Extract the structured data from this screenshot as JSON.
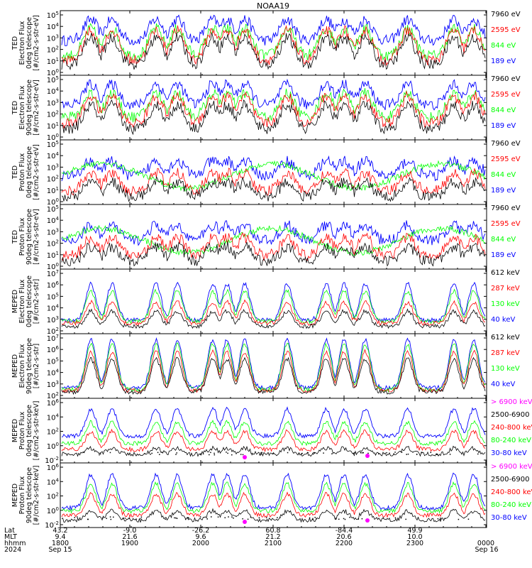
{
  "title": "NOAA19",
  "colors": {
    "black": "#000000",
    "red": "#ff0000",
    "green": "#00ff00",
    "blue": "#0000ff",
    "magenta": "#ff00ff"
  },
  "chart_data": {
    "type": "line",
    "title": "NOAA19",
    "x": {
      "start": "1800",
      "end": "0000",
      "tick_labels": [
        "1800",
        "1900",
        "2000",
        "2100",
        "2200",
        "2300",
        "0000"
      ]
    },
    "panels": [
      {
        "ylabel": [
          "TED",
          "Electron Flux",
          "0deg telescope",
          "[#/cm2-s-str-eV]"
        ],
        "yticks": [
          "10^0",
          "10^1",
          "10^2",
          "10^3",
          "10^4",
          "10^5"
        ],
        "legend": [
          "7960 eV",
          "2595 eV",
          "844 eV",
          "189 eV"
        ],
        "style": "ted_e"
      },
      {
        "ylabel": [
          "TED",
          "Electron Flux",
          "90deg telescope",
          "[#/cm2-s-str-eV]"
        ],
        "yticks": [
          "10^0",
          "10^1",
          "10^2",
          "10^3",
          "10^4",
          "10^5"
        ],
        "legend": [
          "7960 eV",
          "2595 eV",
          "844 eV",
          "189 eV"
        ],
        "style": "ted_e90"
      },
      {
        "ylabel": [
          "TED",
          "Proton Flux",
          "0deg telescope",
          "[#/cm2-s-str-eV]"
        ],
        "yticks": [
          "10^0",
          "10^1",
          "10^2",
          "10^3",
          "10^4",
          "10^5"
        ],
        "legend": [
          "7960 eV",
          "2595 eV",
          "844 eV",
          "189 eV"
        ],
        "style": "ted_p"
      },
      {
        "ylabel": [
          "TED",
          "Proton Flux",
          "90deg telescope",
          "[#/cm2-s-str-eV]"
        ],
        "yticks": [
          "10^0",
          "10^1",
          "10^2",
          "10^3",
          "10^4",
          "10^5"
        ],
        "legend": [
          "7960 eV",
          "2595 eV",
          "844 eV",
          "189 eV"
        ],
        "style": "ted_p"
      },
      {
        "ylabel": [
          "MEPED",
          "Electron Flux",
          "0deg telescope",
          "[#/cm2-s-str]"
        ],
        "yticks": [
          "10^2",
          "10^3",
          "10^4",
          "10^5",
          "10^6",
          "10^7"
        ],
        "legend": [
          "612 keV",
          "287 keV",
          "130 keV",
          "40 keV"
        ],
        "style": "mep_e0"
      },
      {
        "ylabel": [
          "MEPED",
          "Electron Flux",
          "90deg telescope",
          "[#/cm2-s-str]"
        ],
        "yticks": [
          "10^2",
          "10^3",
          "10^4",
          "10^5",
          "10^6",
          "10^7"
        ],
        "legend": [
          "612 keV",
          "287 keV",
          "130 keV",
          "40 keV"
        ],
        "style": "mep_e90"
      },
      {
        "ylabel": [
          "MEPED",
          "Proton Flux",
          "0deg telescope",
          "[#/cm2-s-str-keV]"
        ],
        "yticks": [
          "10^-2",
          "10^0",
          "10^2",
          "10^4",
          "10^6"
        ],
        "legend": [
          "> 6900 keV",
          "2500-6900",
          "240-800 keV",
          "80-240 keV",
          "30-80 keV"
        ],
        "style": "mep_p"
      },
      {
        "ylabel": [
          "MEPED",
          "Proton Flux",
          "90deg telescope",
          "[#/cm2-s-str-keV]"
        ],
        "yticks": [
          "10^-2",
          "10^0",
          "10^2",
          "10^4",
          "10^6"
        ],
        "legend": [
          "> 6900 keV",
          "2500-6900",
          "240-800 keV",
          "80-240 keV",
          "30-80 keV"
        ],
        "style": "mep_p90"
      }
    ],
    "axis_rows": [
      {
        "label": "Lat",
        "values": [
          "43.2",
          "-9.0",
          "-26.2",
          "60.8",
          "-84.4",
          "49.9"
        ]
      },
      {
        "label": "MLT",
        "values": [
          "9.4",
          "21.6",
          "9.6",
          "21.2",
          "20.6",
          "10.0"
        ]
      },
      {
        "label": "hhmm",
        "values": [
          "1800",
          "1900",
          "2000",
          "2100",
          "2200",
          "2300",
          "0000"
        ]
      },
      {
        "label": "2024",
        "values": [
          "Sep 15",
          "Sep 16"
        ]
      }
    ]
  }
}
